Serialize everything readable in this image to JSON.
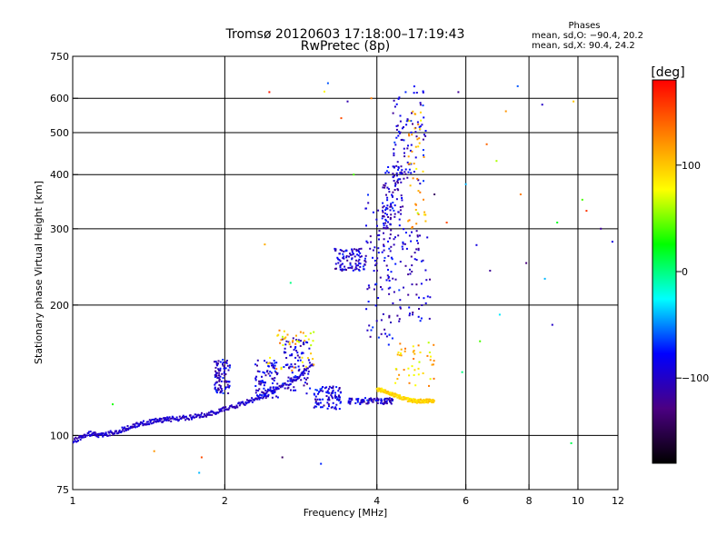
{
  "header": {
    "title": "Tromsø 20120603 17:18:00–17:19:43",
    "subtitle": "RwPretec (8p)",
    "phases_title": "Phases",
    "phases_o": "mean, sd,O: −90.4, 20.2",
    "phases_x": "mean, sd,X: 90.4, 24.2"
  },
  "colorbar": {
    "label": "[deg]",
    "range": [
      -180,
      180
    ],
    "ticks": [
      {
        "value": 100,
        "label": "100"
      },
      {
        "value": 0,
        "label": "0"
      },
      {
        "value": -100,
        "label": "−100"
      }
    ],
    "stops": [
      "#000000",
      "#4b0082",
      "#0000ff",
      "#00ffff",
      "#00ff00",
      "#ffff00",
      "#ff8000",
      "#ff0000"
    ]
  },
  "chart_data": {
    "type": "scatter",
    "title": "Tromsø 20120603 17:18:00–17:19:43",
    "xlabel": "Frequency [MHz]",
    "ylabel": "Stationary phase Virtual Height [km]",
    "xscale": "log",
    "yscale": "log",
    "xlim": [
      1,
      12
    ],
    "ylim": [
      75,
      750
    ],
    "xticks": [
      1,
      2,
      4,
      6,
      8,
      10,
      12
    ],
    "yticks": [
      75,
      100,
      200,
      300,
      400,
      500,
      600,
      750
    ],
    "xgrid": [
      2,
      4,
      6,
      8,
      10
    ],
    "ygrid": [
      100,
      200,
      300,
      400,
      500,
      600
    ],
    "o_trace": [
      [
        1.0,
        97
      ],
      [
        1.08,
        101
      ],
      [
        1.15,
        100
      ],
      [
        1.25,
        103
      ],
      [
        1.35,
        106
      ],
      [
        1.45,
        108
      ],
      [
        1.55,
        109
      ],
      [
        1.7,
        110
      ],
      [
        1.85,
        112
      ],
      [
        2.0,
        115
      ],
      [
        2.2,
        119
      ],
      [
        2.4,
        124
      ],
      [
        2.7,
        133
      ],
      [
        3.0,
        145
      ]
    ],
    "o_patches": [
      [
        1.9,
        2.05,
        125,
        150
      ],
      [
        2.3,
        2.55,
        122,
        150
      ],
      [
        2.6,
        2.95,
        125,
        168
      ],
      [
        3.0,
        3.4,
        115,
        130
      ],
      [
        3.3,
        3.8,
        240,
        270
      ],
      [
        3.8,
        4.3,
        160,
        360
      ],
      [
        4.1,
        4.5,
        300,
        420
      ],
      [
        4.3,
        5.0,
        380,
        640
      ],
      [
        3.5,
        4.3,
        118,
        122
      ],
      [
        4.2,
        5.1,
        180,
        300
      ]
    ],
    "x_trace": [
      [
        4.0,
        128
      ],
      [
        4.2,
        126
      ],
      [
        4.4,
        123
      ],
      [
        4.6,
        121
      ],
      [
        4.8,
        120
      ],
      [
        5.0,
        120
      ],
      [
        5.2,
        120
      ]
    ],
    "x_patches": [
      [
        4.3,
        5.2,
        130,
        170
      ],
      [
        4.6,
        5.0,
        300,
        560
      ],
      [
        2.4,
        3.0,
        140,
        175
      ]
    ],
    "scatter": [
      [
        1.2,
        118,
        30
      ],
      [
        1.45,
        92,
        120
      ],
      [
        1.78,
        82,
        -40
      ],
      [
        1.8,
        89,
        150
      ],
      [
        2.4,
        276,
        110
      ],
      [
        2.45,
        620,
        170
      ],
      [
        2.7,
        225,
        0
      ],
      [
        3.15,
        622,
        80
      ],
      [
        3.2,
        650,
        -60
      ],
      [
        3.4,
        540,
        150
      ],
      [
        3.5,
        590,
        -110
      ],
      [
        3.6,
        400,
        40
      ],
      [
        3.9,
        600,
        130
      ],
      [
        5.8,
        620,
        -120
      ],
      [
        6.3,
        275,
        -90
      ],
      [
        6.6,
        470,
        140
      ],
      [
        6.9,
        430,
        60
      ],
      [
        7.2,
        560,
        120
      ],
      [
        7.6,
        640,
        -60
      ],
      [
        7.9,
        250,
        -130
      ],
      [
        8.5,
        580,
        -100
      ],
      [
        8.6,
        230,
        -40
      ],
      [
        9.1,
        310,
        20
      ],
      [
        9.8,
        590,
        100
      ],
      [
        10.2,
        350,
        40
      ],
      [
        10.4,
        330,
        160
      ],
      [
        11.1,
        300,
        -120
      ],
      [
        11.7,
        280,
        -90
      ],
      [
        5.9,
        140,
        0
      ],
      [
        6.4,
        165,
        40
      ],
      [
        7.0,
        190,
        -30
      ],
      [
        8.9,
        180,
        -100
      ],
      [
        9.7,
        96,
        10
      ],
      [
        5.5,
        310,
        150
      ],
      [
        6.0,
        380,
        -40
      ],
      [
        3.1,
        86,
        -70
      ],
      [
        2.6,
        89,
        -140
      ],
      [
        7.7,
        360,
        130
      ],
      [
        6.7,
        240,
        -120
      ],
      [
        5.2,
        360,
        -140
      ]
    ],
    "label_fmt": "log-log ionogram; o_trace/x_trace = [freq MHz, height km], patches = [fmin, fmax, hmin, hmax], scatter = [freq MHz, height km, phase deg]"
  }
}
